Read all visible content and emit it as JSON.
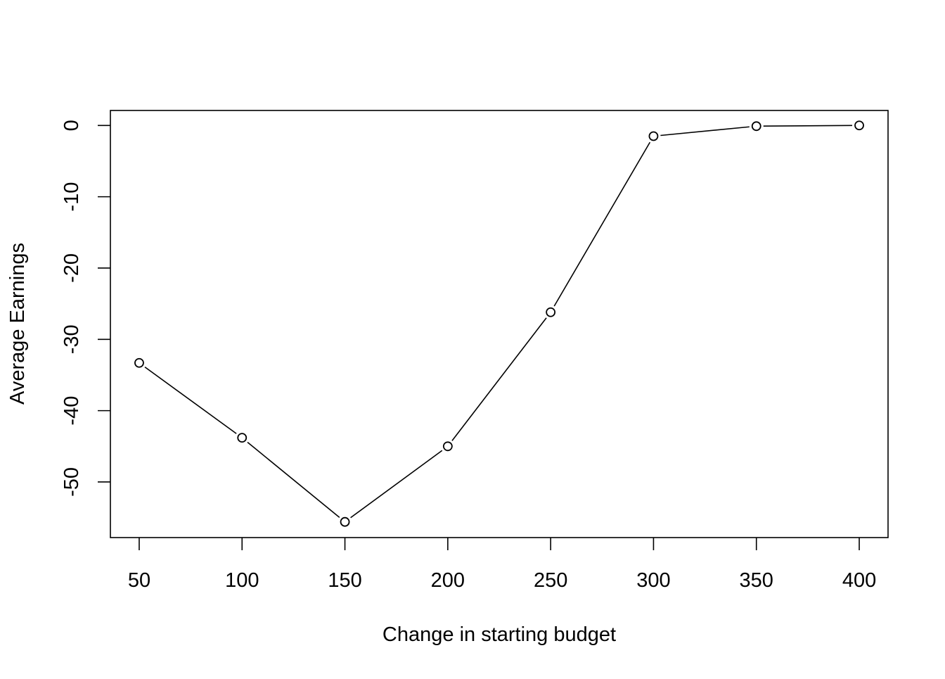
{
  "chart_data": {
    "type": "line",
    "title": "",
    "xlabel": "Change in starting budget",
    "ylabel": "Average Earnings",
    "x": [
      50,
      100,
      150,
      200,
      250,
      300,
      350,
      400
    ],
    "series": [
      {
        "values": [
          -33.3,
          -43.8,
          -55.6,
          -45.0,
          -26.2,
          -1.5,
          -0.1,
          0.0
        ]
      }
    ],
    "xlim": [
      36,
      414
    ],
    "ylim": [
      -57.8,
      2.1
    ],
    "x_ticks": [
      50,
      100,
      150,
      200,
      250,
      300,
      350,
      400
    ],
    "y_ticks": [
      -50,
      -40,
      -30,
      -20,
      -10,
      0
    ],
    "markers": "open-circle",
    "grid": false,
    "legend": "none",
    "colors": {
      "line": "#000000",
      "marker_stroke": "#000000",
      "marker_fill": "#ffffff",
      "background": "#ffffff"
    }
  }
}
